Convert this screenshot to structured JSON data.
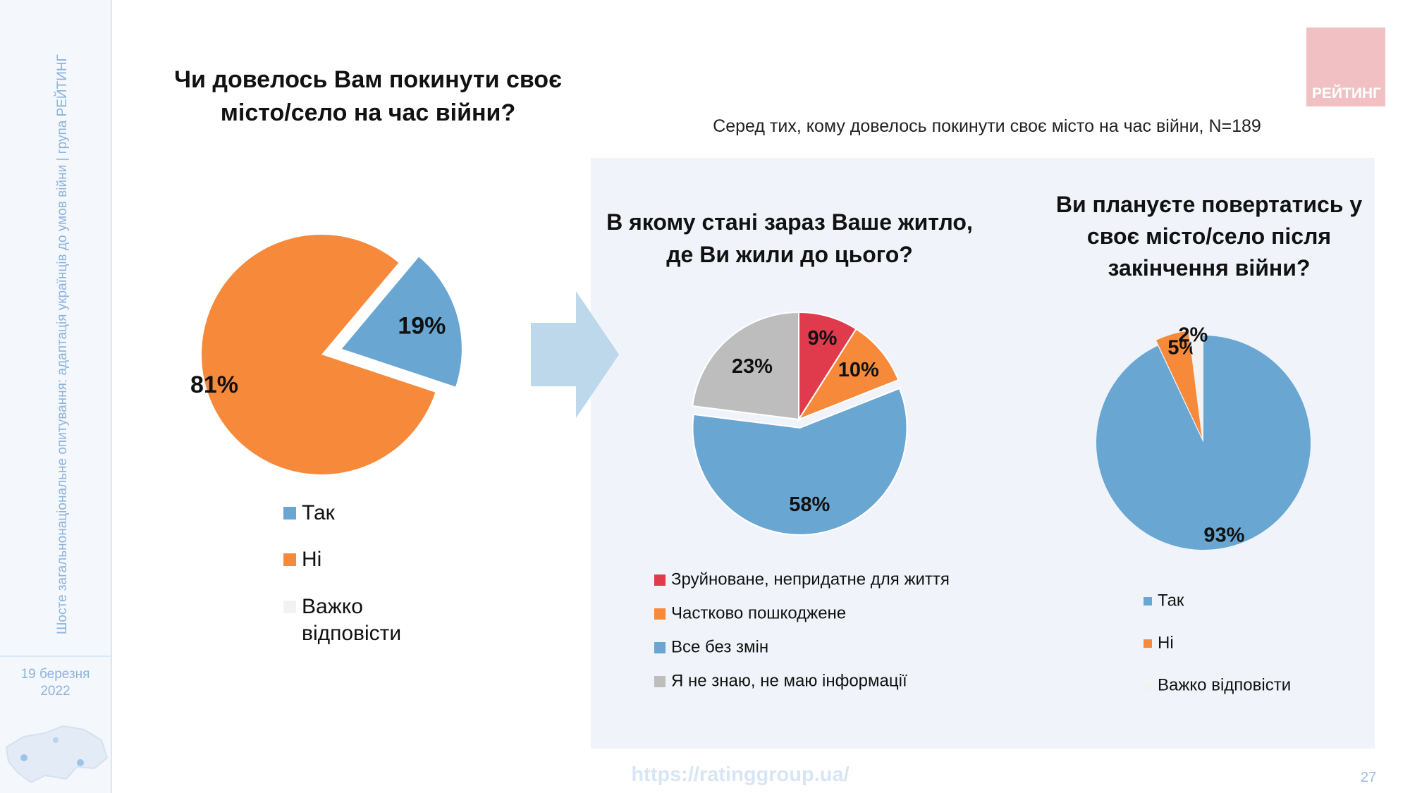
{
  "sidebar": {
    "vertical_text": "Шосте загальнонаціональне опитування: адаптація українців до умов війни | група РЕЙТИНГ",
    "date_line1": "19 березня",
    "date_line2": "2022"
  },
  "logo": {
    "text": "РЕЙТИНГ"
  },
  "header": {
    "main_question": "Чи довелось Вам покинути своє місто/село на час війни?",
    "subtitle": "Серед тих, кому довелось покинути своє місто на час війни, N=189"
  },
  "colors": {
    "blue": "#6aa6d2",
    "orange": "#f68a3a",
    "red": "#e03a4d",
    "gray": "#bdbdbd",
    "light": "#f2f2f2",
    "arrow": "#bcd8ea",
    "panel": "#f0f4fa"
  },
  "chart_data": [
    {
      "type": "pie",
      "title": "Чи довелось Вам покинути своє місто/село на час війни?",
      "categories": [
        "Так",
        "Ні",
        "Важко відповісти"
      ],
      "values": [
        19,
        81,
        0
      ],
      "labels": [
        "19%",
        "81%",
        ""
      ],
      "legend": [
        "Так",
        "Ні",
        "Важко відповісти"
      ]
    },
    {
      "type": "pie",
      "title": "В якому стані зараз Ваше житло, де Ви жили до цього?",
      "categories": [
        "Зруйноване, непридатне для життя",
        "Частково пошкоджене",
        "Все без змін",
        "Я не знаю, не маю інформації"
      ],
      "values": [
        9,
        10,
        58,
        23
      ],
      "labels": [
        "9%",
        "10%",
        "58%",
        "23%"
      ],
      "legend": [
        "Зруйноване, непридатне для життя",
        "Частково пошкоджене",
        "Все без змін",
        "Я не знаю, не маю інформації"
      ]
    },
    {
      "type": "pie",
      "title": "Ви плануєте повертатись у своє місто/село після закінчення війни?",
      "categories": [
        "Так",
        "Ні",
        "Важко відповісти"
      ],
      "values": [
        93,
        5,
        2
      ],
      "labels": [
        "93%",
        "5%",
        "2%"
      ],
      "legend": [
        "Так",
        "Ні",
        "Важко відповісти"
      ]
    }
  ],
  "footer": {
    "url": "https://ratinggroup.ua/",
    "page_number": "27"
  }
}
